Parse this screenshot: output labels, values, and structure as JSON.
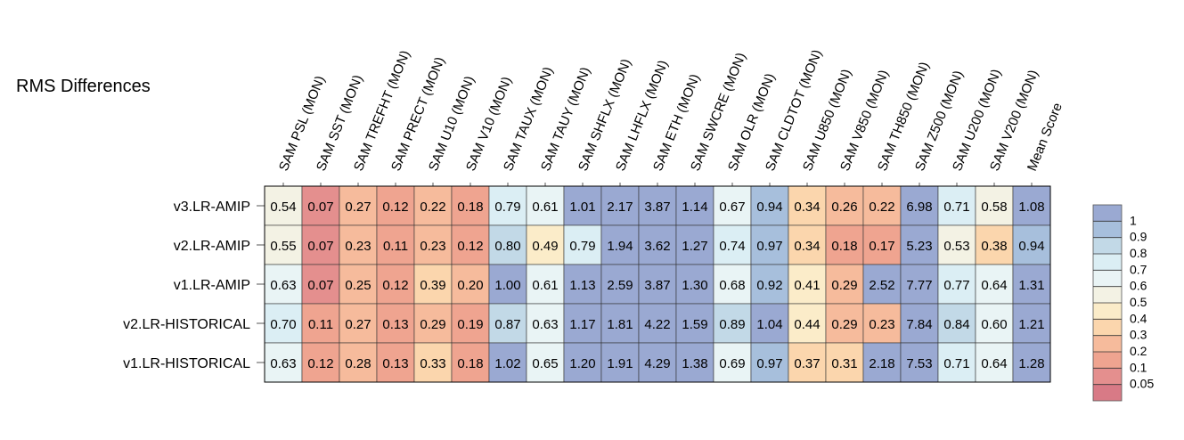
{
  "chart_data": {
    "type": "heatmap",
    "title": "RMS Differences",
    "columns": [
      "SAM PSL (MON)",
      "SAM SST (MON)",
      "SAM TREFHT (MON)",
      "SAM PRECT (MON)",
      "SAM U10 (MON)",
      "SAM V10 (MON)",
      "SAM TAUX (MON)",
      "SAM TAUY (MON)",
      "SAM SHFLX (MON)",
      "SAM LHFLX (MON)",
      "SAM ETH (MON)",
      "SAM SWCRE (MON)",
      "SAM OLR (MON)",
      "SAM CLDTOT (MON)",
      "SAM U850 (MON)",
      "SAM V850 (MON)",
      "SAM TH850 (MON)",
      "SAM Z500 (MON)",
      "SAM U200 (MON)",
      "SAM V200 (MON)",
      "Mean Score"
    ],
    "rows": [
      "v3.LR-AMIP",
      "v2.LR-AMIP",
      "v1.LR-AMIP",
      "v2.LR-HISTORICAL",
      "v1.LR-HISTORICAL"
    ],
    "values": [
      [
        0.54,
        0.07,
        0.27,
        0.12,
        0.22,
        0.18,
        0.79,
        0.61,
        1.01,
        2.17,
        3.87,
        1.14,
        0.67,
        0.94,
        0.34,
        0.26,
        0.22,
        6.98,
        0.71,
        0.58,
        1.08
      ],
      [
        0.55,
        0.07,
        0.23,
        0.11,
        0.23,
        0.12,
        0.8,
        0.49,
        0.79,
        1.94,
        3.62,
        1.27,
        0.74,
        0.97,
        0.34,
        0.18,
        0.17,
        5.23,
        0.53,
        0.38,
        0.94
      ],
      [
        0.63,
        0.07,
        0.25,
        0.12,
        0.39,
        0.2,
        1.0,
        0.61,
        1.13,
        2.59,
        3.87,
        1.3,
        0.68,
        0.92,
        0.41,
        0.29,
        2.52,
        7.77,
        0.77,
        0.64,
        1.31
      ],
      [
        0.7,
        0.11,
        0.27,
        0.13,
        0.29,
        0.19,
        0.87,
        0.63,
        1.17,
        1.81,
        4.22,
        1.59,
        0.89,
        1.04,
        0.44,
        0.29,
        0.23,
        7.84,
        0.84,
        0.6,
        1.21
      ],
      [
        0.63,
        0.12,
        0.28,
        0.13,
        0.33,
        0.18,
        1.02,
        0.65,
        1.2,
        1.91,
        4.29,
        1.38,
        0.69,
        0.97,
        0.37,
        0.31,
        2.18,
        7.53,
        0.71,
        0.64,
        1.28
      ]
    ],
    "colorbar": {
      "ticks": [
        "1",
        "0.9",
        "0.8",
        "0.7",
        "0.6",
        "0.5",
        "0.4",
        "0.3",
        "0.2",
        "0.1",
        "0.05"
      ],
      "bins": [
        {
          "min": 1.0,
          "color": "#9aa9d2"
        },
        {
          "min": 0.9,
          "color": "#a7bfdc"
        },
        {
          "min": 0.8,
          "color": "#c2d9e7"
        },
        {
          "min": 0.7,
          "color": "#dbeef4"
        },
        {
          "min": 0.6,
          "color": "#e9f4f5"
        },
        {
          "min": 0.5,
          "color": "#f3f2e4"
        },
        {
          "min": 0.4,
          "color": "#fbecc9"
        },
        {
          "min": 0.3,
          "color": "#fbd6ad"
        },
        {
          "min": 0.2,
          "color": "#f6bb9c"
        },
        {
          "min": 0.1,
          "color": "#efa490"
        },
        {
          "min": 0.05,
          "color": "#e48f8e"
        },
        {
          "min": 0.0,
          "color": "#d87a86"
        }
      ]
    }
  }
}
